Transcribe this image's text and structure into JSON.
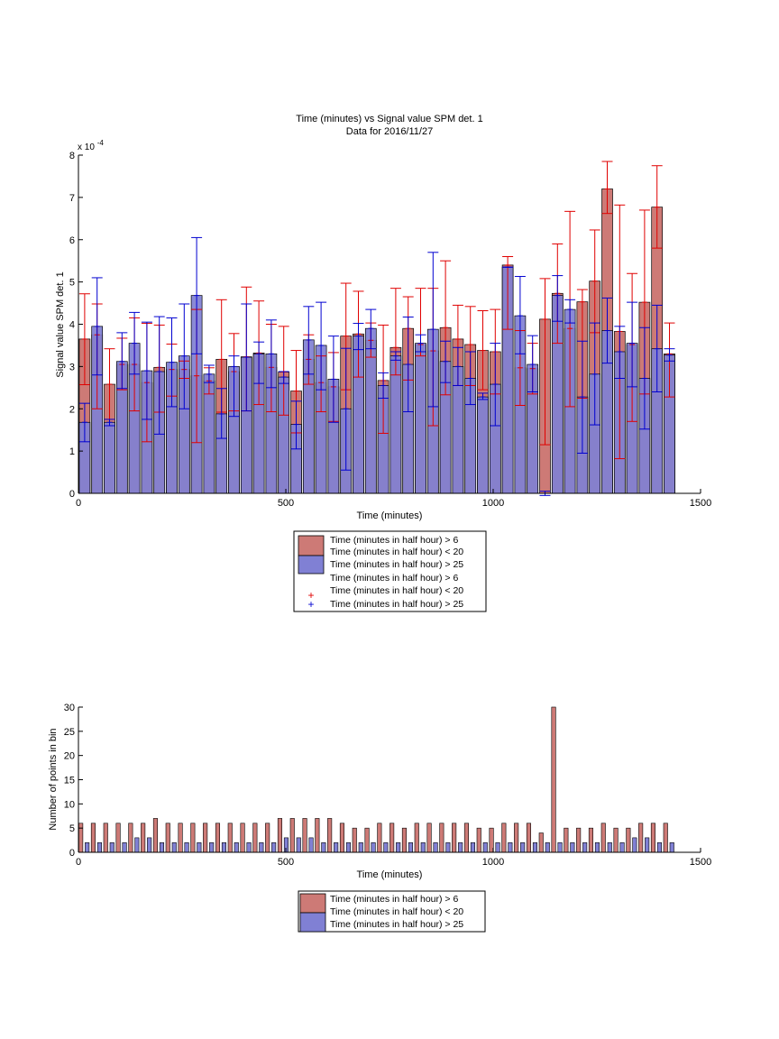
{
  "colors": {
    "red_bar": "#cd7a76",
    "blue_bar": "#8080d4",
    "red_err": "#e00000",
    "blue_err": "#0000d0",
    "axis": "#000000"
  },
  "chart_data": [
    {
      "type": "bar",
      "title": "Time (minutes) vs Signal value SPM det. 1",
      "subtitle": "Data for 2016/11/27",
      "xlabel": "Time (minutes)",
      "ylabel": "Signal value SPM det. 1",
      "y_exponent": "x 10",
      "y_exponent_power": "-4",
      "xlim": [
        0,
        1500
      ],
      "ylim": [
        0,
        8
      ],
      "xticks": [
        "0",
        "500",
        "1000",
        "1500"
      ],
      "yticks": [
        "0",
        "1",
        "2",
        "3",
        "4",
        "5",
        "6",
        "7",
        "8"
      ],
      "x": [
        15,
        45,
        75,
        105,
        135,
        165,
        195,
        225,
        255,
        285,
        315,
        345,
        375,
        405,
        435,
        465,
        495,
        525,
        555,
        585,
        615,
        645,
        675,
        705,
        735,
        765,
        795,
        825,
        855,
        885,
        915,
        945,
        975,
        1005,
        1035,
        1065,
        1095,
        1125,
        1155,
        1185,
        1215,
        1245,
        1275,
        1305,
        1335,
        1365,
        1395,
        1425
      ],
      "series": [
        {
          "name": "Time (minutes in half hour) > 6 Time (minutes in half hour) < 20",
          "values": [
            3.65,
            3.75,
            2.58,
            3.05,
            3.05,
            2.62,
            2.98,
            2.93,
            2.93,
            2.78,
            2.66,
            3.17,
            2.88,
            3.23,
            3.32,
            2.98,
            2.87,
            2.42,
            3.17,
            2.62,
            2.52,
            3.72,
            3.77,
            3.62,
            2.67,
            3.45,
            3.9,
            3.52,
            3.37,
            3.92,
            3.65,
            3.52,
            3.38,
            3.35,
            5.4,
            2.97,
            2.95,
            4.12,
            4.73,
            3.9,
            4.53,
            5.02,
            7.2,
            3.83,
            3.52,
            4.52,
            6.77,
            3.3
          ],
          "err_low": [
            2.57,
            2.0,
            1.75,
            2.45,
            1.95,
            1.22,
            1.92,
            2.3,
            2.72,
            1.2,
            2.97,
            1.92,
            1.95,
            1.95,
            2.1,
            1.93,
            1.85,
            1.43,
            2.58,
            1.93,
            1.7,
            2.45,
            2.75,
            3.22,
            1.42,
            2.8,
            2.68,
            3.25,
            1.6,
            2.33,
            2.55,
            2.55,
            2.45,
            2.35,
            3.88,
            2.08,
            2.35,
            1.15,
            3.55,
            2.05,
            2.25,
            3.8,
            6.62,
            0.82,
            1.7,
            2.35,
            5.8,
            2.28
          ],
          "err_high": [
            4.72,
            4.48,
            3.42,
            3.67,
            4.15,
            4.02,
            3.98,
            3.53,
            3.13,
            4.35,
            2.35,
            4.58,
            3.78,
            4.88,
            4.55,
            4.0,
            3.95,
            3.38,
            3.75,
            3.25,
            3.33,
            4.97,
            4.78,
            4.03,
            3.98,
            4.85,
            4.65,
            4.85,
            4.85,
            5.5,
            4.45,
            4.42,
            4.32,
            4.35,
            5.6,
            3.85,
            3.55,
            5.08,
            5.9,
            6.67,
            4.82,
            6.23,
            7.85,
            6.82,
            5.2,
            6.7,
            7.75,
            4.03
          ]
        },
        {
          "name": "Time (minutes in half hour) > 25",
          "values": [
            1.68,
            3.95,
            1.68,
            3.12,
            3.55,
            2.9,
            2.88,
            3.1,
            3.25,
            4.68,
            2.82,
            1.88,
            3.0,
            3.22,
            3.3,
            3.3,
            2.75,
            1.63,
            3.63,
            3.5,
            2.7,
            2.0,
            3.72,
            3.9,
            2.55,
            3.25,
            3.05,
            3.55,
            3.88,
            3.12,
            3.0,
            2.72,
            2.28,
            2.58,
            5.35,
            4.2,
            3.05,
            0,
            4.68,
            4.35,
            2.28,
            2.82,
            3.85,
            3.35,
            3.55,
            2.72,
            3.42,
            3.27
          ],
          "err_low": [
            1.22,
            2.8,
            1.6,
            2.48,
            2.82,
            1.75,
            1.4,
            2.05,
            2.0,
            3.3,
            2.62,
            1.3,
            1.82,
            1.95,
            2.6,
            2.5,
            2.6,
            1.05,
            2.82,
            2.45,
            1.68,
            0.55,
            3.4,
            3.42,
            2.25,
            3.15,
            1.93,
            3.35,
            2.05,
            2.62,
            2.55,
            2.1,
            2.22,
            1.6,
            5.35,
            3.3,
            2.4,
            -0.05,
            4.07,
            4.03,
            0.95,
            1.62,
            3.08,
            2.72,
            2.52,
            1.52,
            2.4,
            3.13
          ],
          "err_high": [
            2.13,
            5.1,
            1.75,
            3.8,
            4.28,
            4.05,
            4.18,
            4.15,
            4.48,
            6.05,
            3.03,
            2.48,
            3.25,
            4.48,
            3.58,
            4.1,
            2.88,
            2.18,
            4.42,
            4.52,
            3.72,
            3.43,
            4.02,
            4.35,
            2.85,
            3.35,
            4.17,
            3.75,
            5.7,
            3.6,
            3.45,
            3.35,
            2.37,
            3.55,
            5.35,
            5.13,
            3.73,
            0.05,
            5.15,
            4.58,
            3.6,
            4.03,
            4.62,
            3.95,
            4.52,
            3.92,
            4.45,
            3.42
          ]
        }
      ],
      "legend": {
        "placement": "below",
        "entries": [
          [
            "Time (minutes in half hour) > 6",
            "Time (minutes in half hour) < 20"
          ],
          [
            "Time (minutes in half hour) > 25"
          ],
          [
            "Time (minutes in half hour) > 6",
            "Time (minutes in half hour) < 20"
          ],
          [
            "Time (minutes in half hour) > 25"
          ]
        ]
      }
    },
    {
      "type": "bar",
      "xlabel": "Time (minutes)",
      "ylabel": "Number of points in bin",
      "xlim": [
        0,
        1500
      ],
      "ylim": [
        0,
        30
      ],
      "xticks": [
        "0",
        "500",
        "1000",
        "1500"
      ],
      "yticks": [
        "0",
        "5",
        "10",
        "15",
        "20",
        "25",
        "30"
      ],
      "x": [
        15,
        45,
        75,
        105,
        135,
        165,
        195,
        225,
        255,
        285,
        315,
        345,
        375,
        405,
        435,
        465,
        495,
        525,
        555,
        585,
        615,
        645,
        675,
        705,
        735,
        765,
        795,
        825,
        855,
        885,
        915,
        945,
        975,
        1005,
        1035,
        1065,
        1095,
        1125,
        1155,
        1185,
        1215,
        1245,
        1275,
        1305,
        1335,
        1365,
        1395,
        1425
      ],
      "series": [
        {
          "name": "Time (minutes in half hour) > 6 Time (minutes in half hour) < 20",
          "values": [
            6,
            6,
            6,
            6,
            6,
            6,
            7,
            6,
            6,
            6,
            6,
            6,
            6,
            6,
            6,
            6,
            7,
            7,
            7,
            7,
            7,
            6,
            5,
            5,
            6,
            6,
            5,
            6,
            6,
            6,
            6,
            6,
            5,
            5,
            6,
            6,
            6,
            4,
            30,
            5,
            5,
            5,
            6,
            5,
            5,
            6,
            6,
            6
          ]
        },
        {
          "name": "Time (minutes in half hour) > 25",
          "values": [
            2,
            2,
            2,
            2,
            3,
            3,
            2,
            2,
            2,
            2,
            2,
            2,
            2,
            2,
            2,
            2,
            3,
            3,
            3,
            2,
            2,
            2,
            2,
            2,
            2,
            2,
            2,
            2,
            2,
            2,
            2,
            2,
            2,
            2,
            2,
            2,
            2,
            2,
            2,
            2,
            2,
            2,
            2,
            2,
            3,
            3,
            2,
            2
          ]
        }
      ],
      "legend": {
        "placement": "below",
        "entries": [
          [
            "Time (minutes in half hour) > 6",
            "Time (minutes in half hour) < 20"
          ],
          [
            "Time (minutes in half hour) > 25"
          ]
        ]
      }
    }
  ]
}
